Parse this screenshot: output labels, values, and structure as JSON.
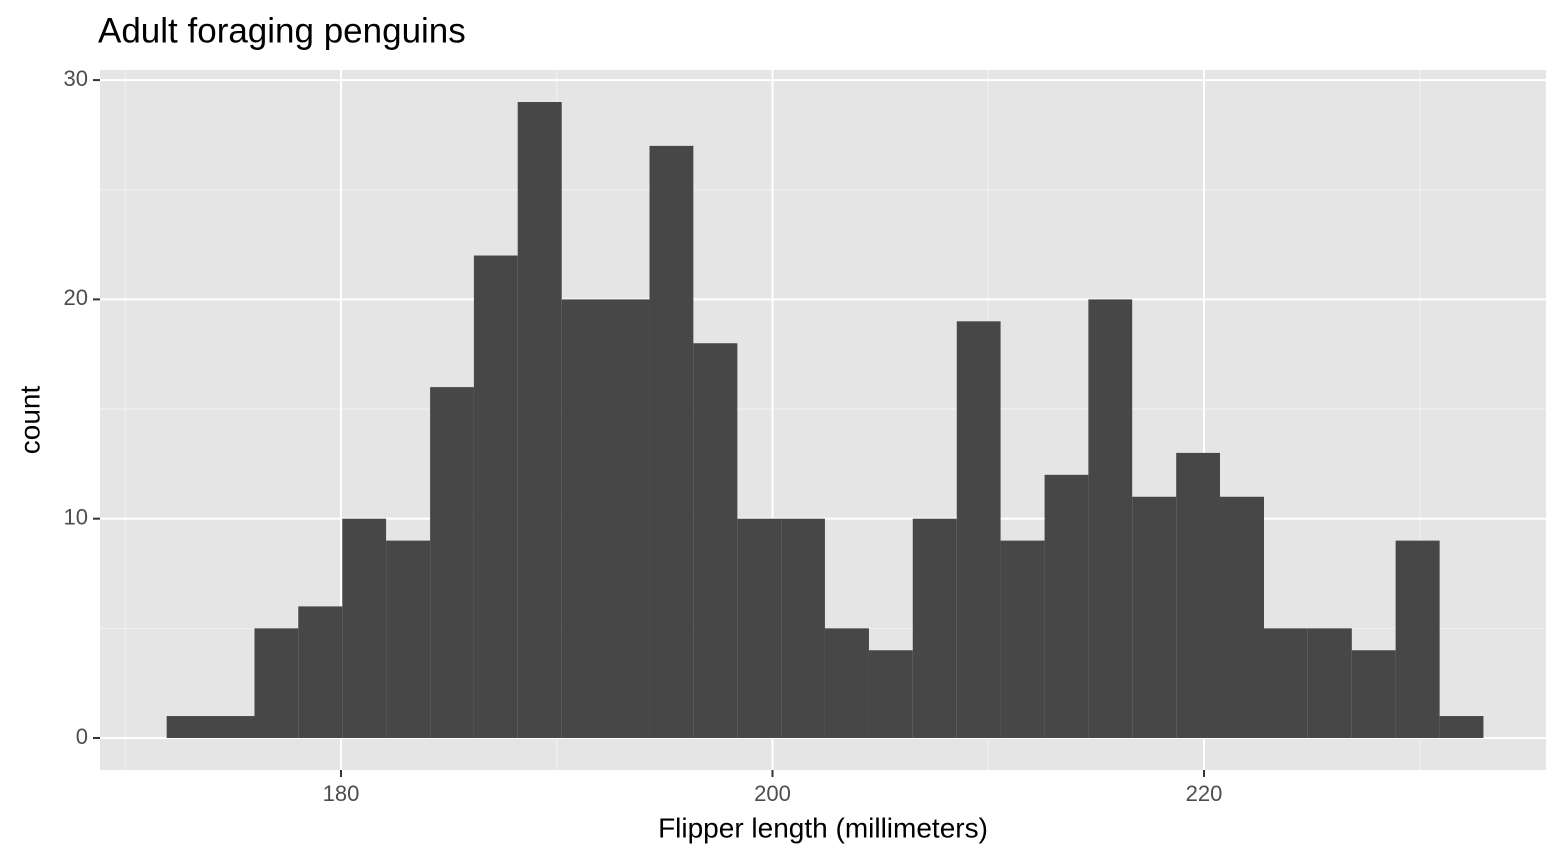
{
  "chart_data": {
    "type": "histogram",
    "title": "Adult foraging penguins",
    "x_label": "Flipper length (millimeters)",
    "y_label": "count",
    "bins": [
      171.92,
      173.95,
      175.99,
      178.02,
      180.06,
      182.09,
      184.13,
      186.16,
      188.19,
      190.23,
      192.26,
      194.3,
      196.33,
      198.37,
      200.4,
      202.43,
      204.47,
      206.5,
      208.54,
      210.57,
      212.61,
      214.64,
      216.67,
      218.71,
      220.74,
      222.78,
      224.81,
      226.85,
      228.88,
      230.92,
      232.95
    ],
    "values": [
      1,
      1,
      5,
      6,
      10,
      9,
      16,
      22,
      29,
      20,
      20,
      27,
      18,
      10,
      10,
      5,
      4,
      10,
      19,
      9,
      12,
      20,
      11,
      13,
      11,
      5,
      5,
      4,
      9,
      1
    ],
    "color": "#474747",
    "xlim": [
      168.83,
      235.85
    ],
    "xticks": [
      180,
      200,
      220
    ],
    "ylim": [
      -1.46,
      30.46
    ],
    "yticks": [
      0,
      10,
      20,
      30
    ],
    "grid": true
  }
}
